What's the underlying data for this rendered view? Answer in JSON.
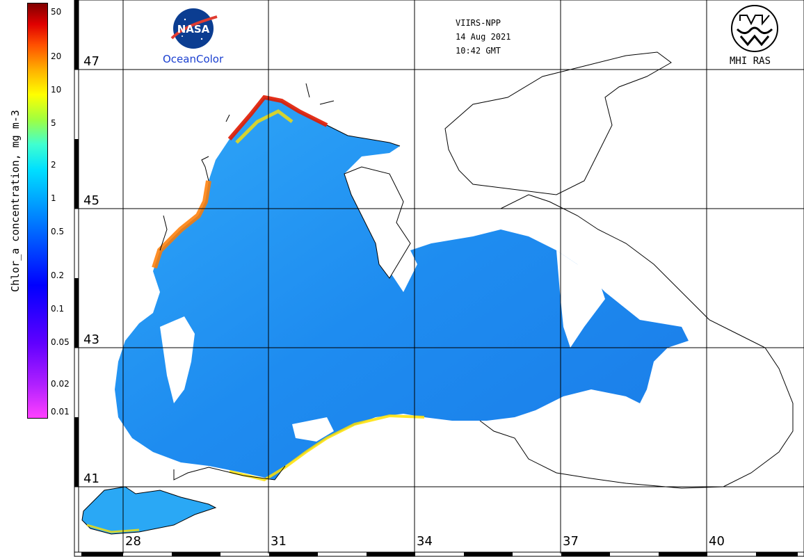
{
  "header": {
    "sensor": "VIIRS-NPP",
    "date": "14 Aug 2021",
    "time": "10:42 GMT"
  },
  "logos": {
    "nasa_text": "NASA",
    "oceancolor_label": "OceanColor",
    "mhi_label": "MHI RAS"
  },
  "colorbar": {
    "title": "Chlor_a concentration, mg m-3",
    "ticks": [
      "50",
      "20",
      "10",
      "5",
      "2",
      "1",
      "0.5",
      "0.2",
      "0.1",
      "0.05",
      "0.02",
      "0.01"
    ],
    "scale": "log",
    "colors": [
      "#ff40ff",
      "#8000ff",
      "#0000ff",
      "#0070ff",
      "#00c8ff",
      "#40ffd0",
      "#a0ff40",
      "#ffff00",
      "#ff9000",
      "#e00000",
      "#800000"
    ]
  },
  "map": {
    "latitudes": [
      "47",
      "45",
      "43",
      "41"
    ],
    "longitudes": [
      "28",
      "31",
      "34",
      "37",
      "40"
    ],
    "land_color": "#ffffff",
    "water_color": "#1e8cf0",
    "coast_color": "#000000"
  }
}
